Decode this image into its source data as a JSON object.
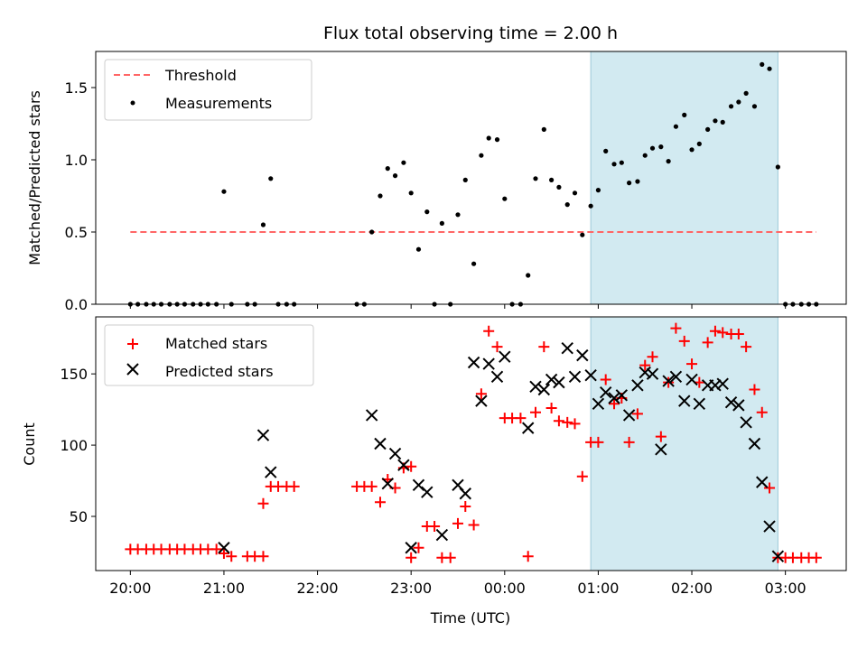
{
  "chart_data": [
    {
      "type": "scatter",
      "title": "Flux total observing time = 2.00 h",
      "xlabel": "",
      "ylabel": "Matched/Predicted stars",
      "x_unit": "hours after 20:00 UTC",
      "xlim": [
        -0.37,
        7.65
      ],
      "ylim": [
        0.0,
        1.75
      ],
      "yticks": [
        "0.0",
        "0.5",
        "1.0",
        "1.5"
      ],
      "ytick_values": [
        0.0,
        0.5,
        1.0,
        1.5
      ],
      "highlight_span": [
        4.92,
        6.92
      ],
      "highlight_color": "#add8e6",
      "threshold": {
        "name": "Threshold",
        "y": 0.5,
        "x_range": [
          0.0,
          7.33
        ],
        "color": "#ff6666"
      },
      "legend_position": "upper-left",
      "legend": [
        "Threshold",
        "Measurements"
      ],
      "series": [
        {
          "name": "Measurements",
          "color": "#000000",
          "points": [
            [
              0.0,
              0.0
            ],
            [
              0.08,
              0.0
            ],
            [
              0.17,
              0.0
            ],
            [
              0.25,
              0.0
            ],
            [
              0.33,
              0.0
            ],
            [
              0.42,
              0.0
            ],
            [
              0.5,
              0.0
            ],
            [
              0.58,
              0.0
            ],
            [
              0.67,
              0.0
            ],
            [
              0.75,
              0.0
            ],
            [
              0.83,
              0.0
            ],
            [
              0.92,
              0.0
            ],
            [
              1.0,
              0.78
            ],
            [
              1.08,
              0.0
            ],
            [
              1.25,
              0.0
            ],
            [
              1.33,
              0.0
            ],
            [
              1.42,
              0.55
            ],
            [
              1.5,
              0.87
            ],
            [
              1.58,
              0.0
            ],
            [
              1.67,
              0.0
            ],
            [
              1.75,
              0.0
            ],
            [
              2.42,
              0.0
            ],
            [
              2.5,
              0.0
            ],
            [
              2.58,
              0.5
            ],
            [
              2.67,
              0.75
            ],
            [
              2.75,
              0.94
            ],
            [
              2.83,
              0.89
            ],
            [
              2.92,
              0.98
            ],
            [
              3.0,
              0.77
            ],
            [
              3.08,
              0.38
            ],
            [
              3.17,
              0.64
            ],
            [
              3.25,
              0.0
            ],
            [
              3.33,
              0.56
            ],
            [
              3.42,
              0.0
            ],
            [
              3.5,
              0.62
            ],
            [
              3.58,
              0.86
            ],
            [
              3.67,
              0.28
            ],
            [
              3.75,
              1.03
            ],
            [
              3.83,
              1.15
            ],
            [
              3.92,
              1.14
            ],
            [
              4.0,
              0.73
            ],
            [
              4.08,
              0.0
            ],
            [
              4.17,
              0.0
            ],
            [
              4.25,
              0.2
            ],
            [
              4.33,
              0.87
            ],
            [
              4.42,
              1.21
            ],
            [
              4.5,
              0.86
            ],
            [
              4.58,
              0.81
            ],
            [
              4.67,
              0.69
            ],
            [
              4.75,
              0.77
            ],
            [
              4.83,
              0.48
            ],
            [
              4.92,
              0.68
            ],
            [
              5.0,
              0.79
            ],
            [
              5.08,
              1.06
            ],
            [
              5.17,
              0.97
            ],
            [
              5.25,
              0.98
            ],
            [
              5.33,
              0.84
            ],
            [
              5.42,
              0.85
            ],
            [
              5.5,
              1.03
            ],
            [
              5.58,
              1.08
            ],
            [
              5.67,
              1.09
            ],
            [
              5.75,
              0.99
            ],
            [
              5.83,
              1.23
            ],
            [
              5.92,
              1.31
            ],
            [
              6.0,
              1.07
            ],
            [
              6.08,
              1.11
            ],
            [
              6.17,
              1.21
            ],
            [
              6.25,
              1.27
            ],
            [
              6.33,
              1.26
            ],
            [
              6.42,
              1.37
            ],
            [
              6.5,
              1.4
            ],
            [
              6.58,
              1.46
            ],
            [
              6.67,
              1.37
            ],
            [
              6.75,
              1.66
            ],
            [
              6.83,
              1.63
            ],
            [
              6.92,
              0.95
            ],
            [
              7.0,
              0.0
            ],
            [
              7.08,
              0.0
            ],
            [
              7.17,
              0.0
            ],
            [
              7.25,
              0.0
            ],
            [
              7.33,
              0.0
            ]
          ]
        }
      ]
    },
    {
      "type": "scatter",
      "title": "",
      "xlabel": "Time (UTC)",
      "ylabel": "Count",
      "x_unit": "hours after 20:00 UTC",
      "xlim": [
        -0.37,
        7.65
      ],
      "ylim": [
        12,
        190
      ],
      "xticks": [
        "20:00",
        "21:00",
        "22:00",
        "23:00",
        "00:00",
        "01:00",
        "02:00",
        "03:00"
      ],
      "xtick_values": [
        0,
        1,
        2,
        3,
        4,
        5,
        6,
        7
      ],
      "yticks": [
        "50",
        "100",
        "150"
      ],
      "ytick_values": [
        50,
        100,
        150
      ],
      "highlight_span": [
        4.92,
        6.92
      ],
      "highlight_color": "#add8e6",
      "legend_position": "upper-left",
      "legend": [
        "Matched stars",
        "Predicted stars"
      ],
      "series": [
        {
          "name": "Matched stars",
          "marker": "plus",
          "color": "#ff0000",
          "points": [
            [
              0.0,
              27
            ],
            [
              0.08,
              27
            ],
            [
              0.17,
              27
            ],
            [
              0.25,
              27
            ],
            [
              0.33,
              27
            ],
            [
              0.42,
              27
            ],
            [
              0.5,
              27
            ],
            [
              0.58,
              27
            ],
            [
              0.67,
              27
            ],
            [
              0.75,
              27
            ],
            [
              0.83,
              27
            ],
            [
              0.92,
              27
            ],
            [
              1.0,
              24
            ],
            [
              1.08,
              22
            ],
            [
              1.25,
              22
            ],
            [
              1.33,
              22
            ],
            [
              1.42,
              22
            ],
            [
              1.42,
              59
            ],
            [
              1.5,
              71
            ],
            [
              1.58,
              71
            ],
            [
              1.67,
              71
            ],
            [
              1.75,
              71
            ],
            [
              2.42,
              71
            ],
            [
              2.5,
              71
            ],
            [
              2.58,
              71
            ],
            [
              2.67,
              60
            ],
            [
              2.75,
              76
            ],
            [
              2.83,
              70
            ],
            [
              2.92,
              84
            ],
            [
              3.0,
              85
            ],
            [
              3.0,
              21
            ],
            [
              3.08,
              28
            ],
            [
              3.17,
              43
            ],
            [
              3.25,
              43
            ],
            [
              3.33,
              21
            ],
            [
              3.42,
              21
            ],
            [
              3.5,
              45
            ],
            [
              3.58,
              57
            ],
            [
              3.67,
              44
            ],
            [
              3.75,
              136
            ],
            [
              3.83,
              180
            ],
            [
              3.92,
              169
            ],
            [
              4.0,
              119
            ],
            [
              4.08,
              119
            ],
            [
              4.17,
              119
            ],
            [
              4.25,
              22
            ],
            [
              4.33,
              123
            ],
            [
              4.42,
              169
            ],
            [
              4.5,
              126
            ],
            [
              4.58,
              117
            ],
            [
              4.67,
              116
            ],
            [
              4.75,
              115
            ],
            [
              4.83,
              78
            ],
            [
              4.92,
              102
            ],
            [
              5.0,
              102
            ],
            [
              5.08,
              146
            ],
            [
              5.17,
              129
            ],
            [
              5.25,
              133
            ],
            [
              5.33,
              102
            ],
            [
              5.42,
              122
            ],
            [
              5.5,
              156
            ],
            [
              5.58,
              162
            ],
            [
              5.67,
              106
            ],
            [
              5.75,
              144
            ],
            [
              5.83,
              182
            ],
            [
              5.92,
              173
            ],
            [
              6.0,
              157
            ],
            [
              6.08,
              144
            ],
            [
              6.17,
              172
            ],
            [
              6.25,
              180
            ],
            [
              6.33,
              179
            ],
            [
              6.42,
              178
            ],
            [
              6.5,
              178
            ],
            [
              6.58,
              169
            ],
            [
              6.67,
              139
            ],
            [
              6.75,
              123
            ],
            [
              6.83,
              70
            ],
            [
              6.92,
              21
            ],
            [
              7.0,
              21
            ],
            [
              7.08,
              21
            ],
            [
              7.17,
              21
            ],
            [
              7.25,
              21
            ],
            [
              7.33,
              21
            ]
          ]
        },
        {
          "name": "Predicted stars",
          "marker": "x",
          "color": "#000000",
          "points": [
            [
              1.0,
              28
            ],
            [
              1.42,
              107
            ],
            [
              1.5,
              81
            ],
            [
              2.58,
              121
            ],
            [
              2.67,
              101
            ],
            [
              2.75,
              73
            ],
            [
              2.83,
              94
            ],
            [
              2.92,
              86
            ],
            [
              3.0,
              28
            ],
            [
              3.08,
              72
            ],
            [
              3.17,
              67
            ],
            [
              3.33,
              37
            ],
            [
              3.5,
              72
            ],
            [
              3.58,
              66
            ],
            [
              3.67,
              158
            ],
            [
              3.75,
              131
            ],
            [
              3.83,
              157
            ],
            [
              3.92,
              148
            ],
            [
              4.0,
              162
            ],
            [
              4.25,
              112
            ],
            [
              4.33,
              141
            ],
            [
              4.42,
              139
            ],
            [
              4.5,
              146
            ],
            [
              4.58,
              144
            ],
            [
              4.67,
              168
            ],
            [
              4.75,
              148
            ],
            [
              4.83,
              163
            ],
            [
              4.92,
              149
            ],
            [
              5.0,
              129
            ],
            [
              5.08,
              137
            ],
            [
              5.17,
              133
            ],
            [
              5.25,
              135
            ],
            [
              5.33,
              121
            ],
            [
              5.42,
              142
            ],
            [
              5.5,
              151
            ],
            [
              5.58,
              150
            ],
            [
              5.67,
              97
            ],
            [
              5.75,
              145
            ],
            [
              5.83,
              148
            ],
            [
              5.92,
              131
            ],
            [
              6.0,
              146
            ],
            [
              6.08,
              129
            ],
            [
              6.17,
              142
            ],
            [
              6.25,
              142
            ],
            [
              6.33,
              143
            ],
            [
              6.42,
              130
            ],
            [
              6.5,
              128
            ],
            [
              6.58,
              116
            ],
            [
              6.67,
              101
            ],
            [
              6.75,
              74
            ],
            [
              6.83,
              43
            ],
            [
              6.92,
              22
            ]
          ]
        }
      ]
    }
  ]
}
